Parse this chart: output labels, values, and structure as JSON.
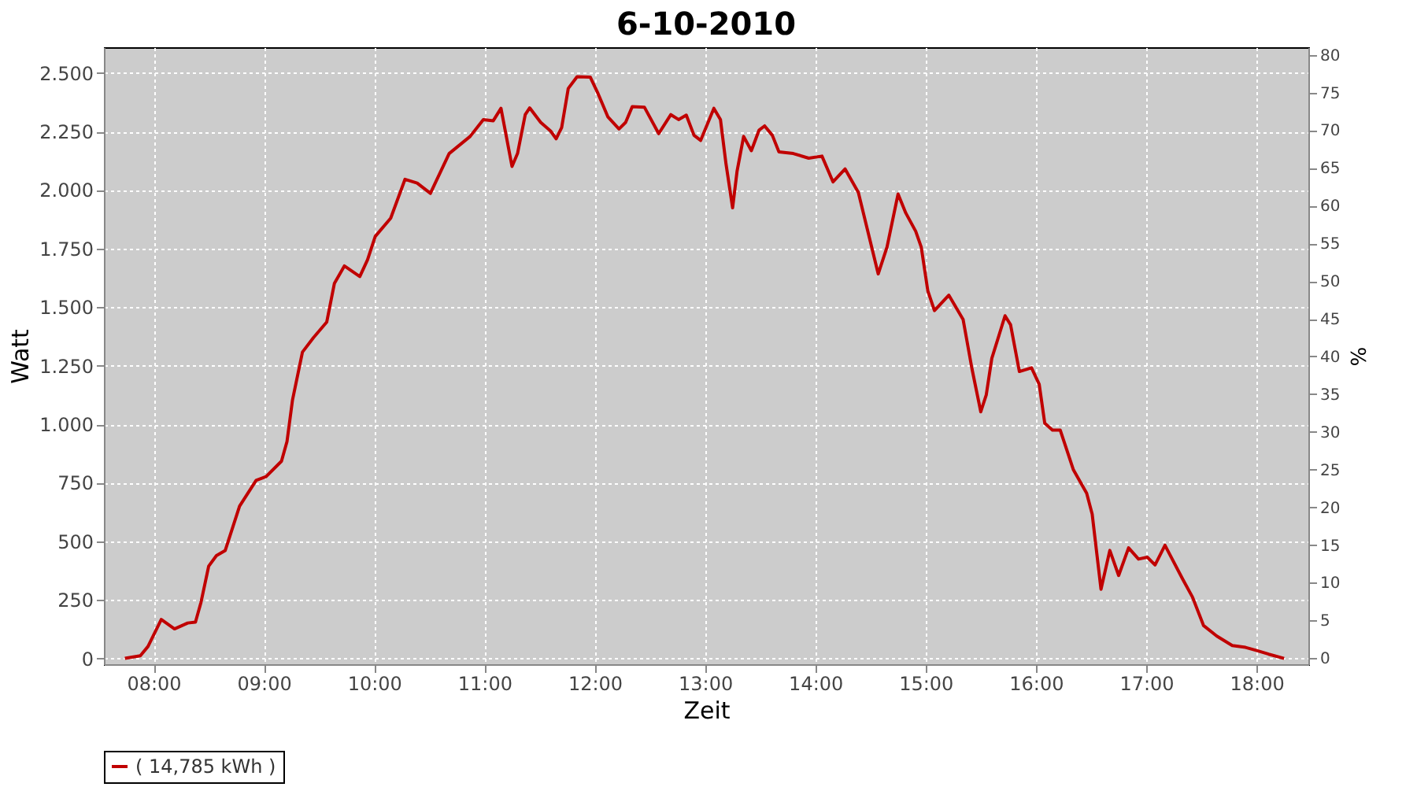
{
  "chart_data": {
    "type": "line",
    "title": "6-10-2010",
    "xlabel": "Zeit",
    "ylabel": "Watt",
    "y2label": "%",
    "xlim": [
      7.55,
      18.47
    ],
    "xticks": [
      {
        "value": 8,
        "label": "08:00"
      },
      {
        "value": 9,
        "label": "09:00"
      },
      {
        "value": 10,
        "label": "10:00"
      },
      {
        "value": 11,
        "label": "11:00"
      },
      {
        "value": 12,
        "label": "12:00"
      },
      {
        "value": 13,
        "label": "13:00"
      },
      {
        "value": 14,
        "label": "14:00"
      },
      {
        "value": 15,
        "label": "15:00"
      },
      {
        "value": 16,
        "label": "16:00"
      },
      {
        "value": 17,
        "label": "17:00"
      },
      {
        "value": 18,
        "label": "18:00"
      }
    ],
    "ylim": [
      -25,
      2610
    ],
    "yticks": [
      0,
      250,
      500,
      750,
      {
        "value": 1000,
        "label": "1.000"
      },
      {
        "value": 1250,
        "label": "1.250"
      },
      {
        "value": 1500,
        "label": "1.500"
      },
      {
        "value": 1750,
        "label": "1.750"
      },
      {
        "value": 2000,
        "label": "2.000"
      },
      {
        "value": 2250,
        "label": "2.250"
      },
      {
        "value": 2500,
        "label": "2.500"
      }
    ],
    "y2lim": [
      -0.8,
      81
    ],
    "y2ticks": [
      0,
      5,
      10,
      15,
      20,
      25,
      30,
      35,
      40,
      45,
      50,
      55,
      60,
      65,
      70,
      75,
      80
    ],
    "grid": true,
    "legend": "bottom",
    "series": [
      {
        "name": "( 14,785 kWh )",
        "color": "#c00000",
        "x": [
          7.74,
          7.88,
          7.95,
          8.07,
          8.19,
          8.31,
          8.38,
          8.43,
          8.5,
          8.57,
          8.65,
          8.78,
          8.93,
          9.02,
          9.16,
          9.21,
          9.26,
          9.35,
          9.45,
          9.57,
          9.64,
          9.73,
          9.87,
          9.94,
          10.01,
          10.15,
          10.28,
          10.39,
          10.51,
          10.68,
          10.87,
          10.99,
          11.08,
          11.15,
          11.25,
          11.3,
          11.37,
          11.41,
          11.51,
          11.6,
          11.65,
          11.7,
          11.76,
          11.84,
          11.96,
          12.03,
          12.12,
          12.22,
          12.28,
          12.34,
          12.45,
          12.58,
          12.69,
          12.76,
          12.83,
          12.9,
          12.96,
          13.08,
          13.14,
          13.19,
          13.25,
          13.29,
          13.35,
          13.42,
          13.49,
          13.54,
          13.61,
          13.67,
          13.8,
          13.94,
          14.06,
          14.16,
          14.27,
          14.39,
          14.47,
          14.57,
          14.65,
          14.75,
          14.82,
          14.91,
          14.96,
          15.02,
          15.08,
          15.21,
          15.34,
          15.42,
          15.5,
          15.55,
          15.6,
          15.72,
          15.77,
          15.85,
          15.96,
          16.03,
          16.08,
          16.15,
          16.22,
          16.34,
          16.46,
          16.51,
          16.59,
          16.67,
          16.75,
          16.84,
          16.93,
          17.01,
          17.08,
          17.17,
          17.33,
          17.42,
          17.52,
          17.64,
          17.78,
          17.9,
          17.99,
          18.11,
          18.25
        ],
        "values": [
          0,
          11,
          51,
          166,
          126,
          151,
          155,
          239,
          394,
          439,
          461,
          650,
          760,
          776,
          842,
          926,
          1104,
          1308,
          1370,
          1436,
          1602,
          1676,
          1631,
          1702,
          1802,
          1880,
          2046,
          2030,
          1986,
          2156,
          2229,
          2301,
          2296,
          2349,
          2101,
          2156,
          2322,
          2351,
          2289,
          2252,
          2219,
          2267,
          2434,
          2484,
          2482,
          2412,
          2312,
          2261,
          2289,
          2356,
          2354,
          2241,
          2322,
          2301,
          2320,
          2234,
          2212,
          2349,
          2301,
          2112,
          1924,
          2079,
          2229,
          2168,
          2256,
          2274,
          2234,
          2163,
          2156,
          2136,
          2145,
          2035,
          2090,
          1990,
          1835,
          1642,
          1757,
          1983,
          1902,
          1824,
          1757,
          1569,
          1485,
          1551,
          1447,
          1237,
          1053,
          1126,
          1281,
          1463,
          1425,
          1225,
          1241,
          1170,
          1004,
          975,
          975,
          805,
          705,
          616,
          295,
          461,
          354,
          472,
          424,
          432,
          399,
          483,
          339,
          261,
          140,
          95,
          55,
          47,
          35,
          18,
          0
        ]
      }
    ]
  }
}
